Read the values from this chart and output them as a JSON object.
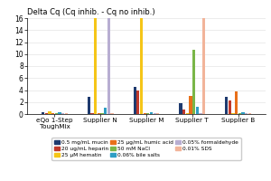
{
  "title": "Delta Cq (Cq inhib. - Cq no inhib.)",
  "groups": [
    "eQo 1-Step\nToughMix",
    "Supplier N",
    "Supplier M",
    "Supplier T",
    "Supplier B"
  ],
  "series_labels": [
    "0.5 mg/mL mucin",
    "20 ug/mL heparin",
    "25 μM hematin",
    "25 μg/mL humic acid",
    "50 mM NaCl",
    "0.06% bile salts",
    "0.05% formaldehyde",
    "0.01% SDS"
  ],
  "series_colors": [
    "#1e3a6e",
    "#c0392b",
    "#f5c518",
    "#e8701a",
    "#7ab648",
    "#2e9ec4",
    "#b8aed2",
    "#f2b49a"
  ],
  "values": {
    "0.5 mg/mL mucin": [
      0.3,
      2.8,
      4.5,
      1.8,
      2.8
    ],
    "20 ug/mL heparin": [
      0.2,
      0.2,
      4.0,
      0.8,
      2.2
    ],
    "25 μM hematin": [
      0.5,
      16.0,
      16.0,
      0.2,
      0.2
    ],
    "25 μg/mL humic acid": [
      0.2,
      0.2,
      0.2,
      3.0,
      3.8
    ],
    "50 mM NaCl": [
      0.2,
      0.2,
      0.2,
      10.7,
      0.2
    ],
    "0.06% bile salts": [
      0.3,
      1.1,
      0.3,
      1.2,
      0.3
    ],
    "0.05% formaldehyde": [
      0.2,
      16.0,
      0.2,
      0.2,
      0.2
    ],
    "0.01% SDS": [
      0.2,
      0.2,
      0.2,
      16.0,
      0.2
    ]
  },
  "ylim": [
    0,
    16
  ],
  "yticks": [
    0,
    2,
    4,
    6,
    8,
    10,
    12,
    14,
    16
  ],
  "legend_rows": [
    [
      "0.5 mg/mL mucin",
      "20 ug/mL heparin",
      "25 μM hematin"
    ],
    [
      "25 μg/mL humic acid",
      "50 mM NaCl",
      "0.06% bile salts"
    ],
    [
      "0.05% formaldehyde",
      "0.01% SDS"
    ]
  ]
}
